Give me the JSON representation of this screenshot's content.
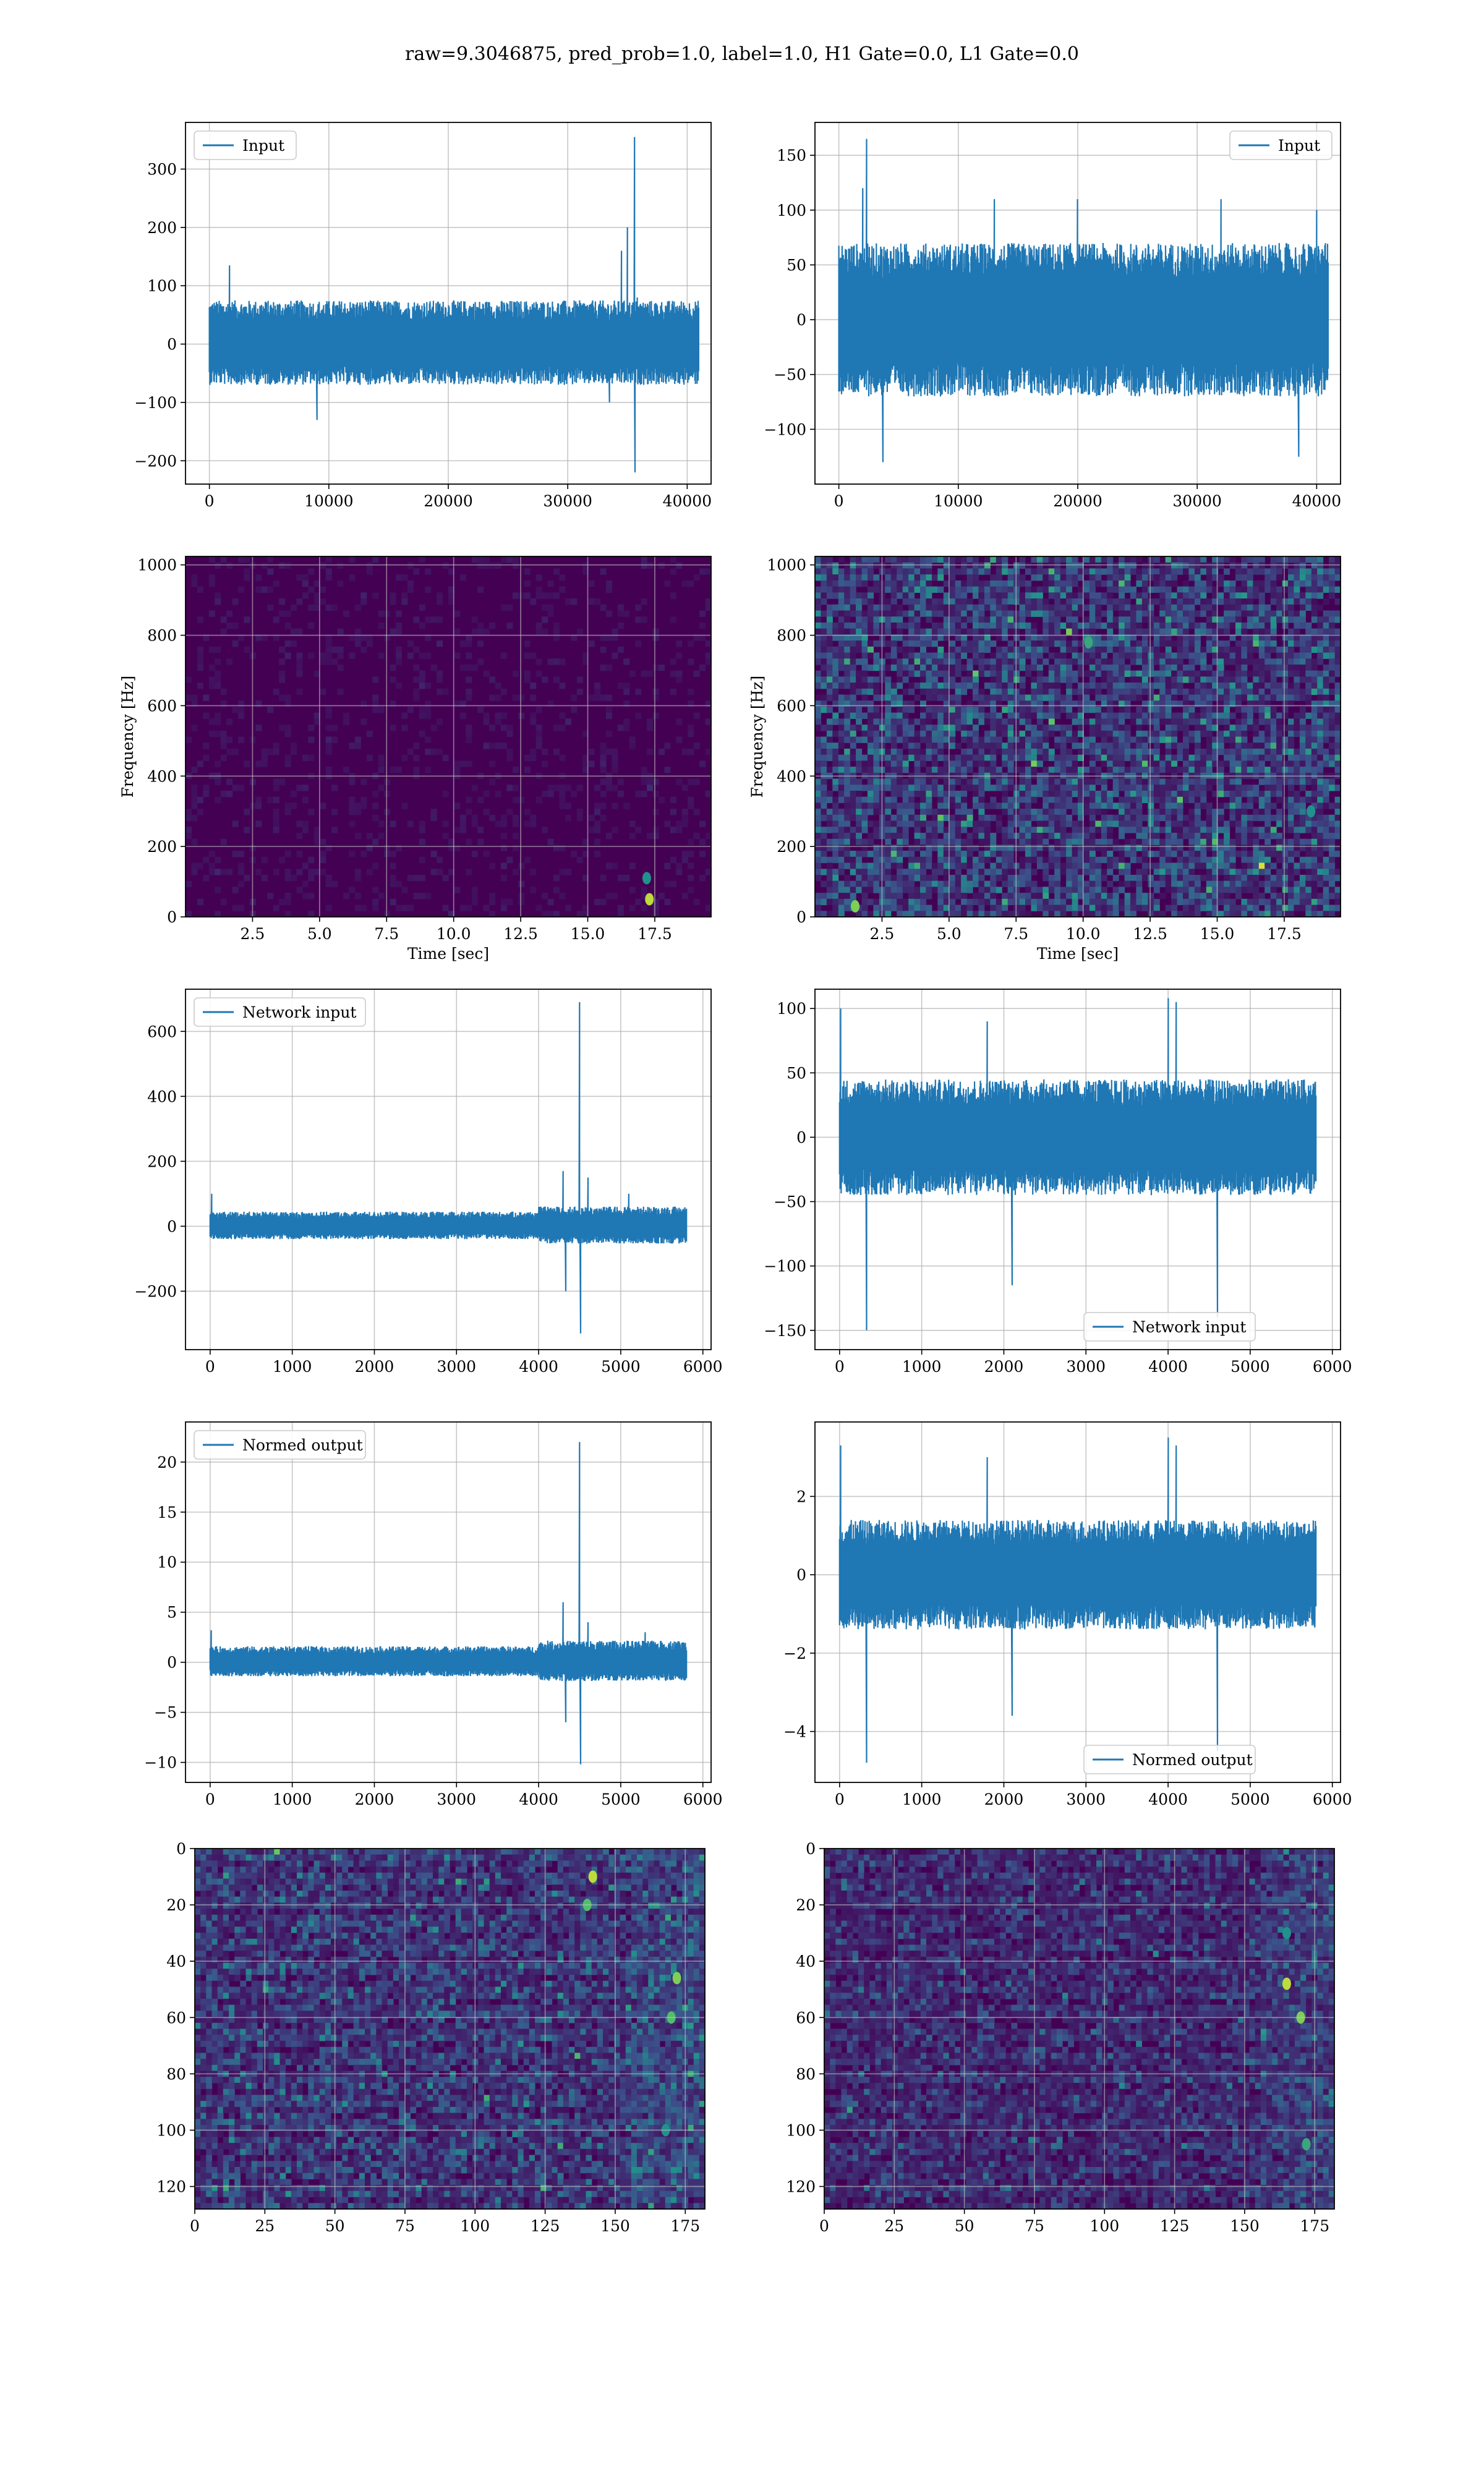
{
  "figure": {
    "title": "raw=9.3046875, pred_prob=1.0, label=1.0, H1 Gate=0.0, L1 Gate=0.0"
  },
  "colors": {
    "line": "#1f77b4",
    "grid": "#b0b0b0",
    "viridis_low": "#440154",
    "viridis_mid": "#21918c",
    "viridis_high": "#fde725"
  },
  "chart_data": [
    {
      "type": "line",
      "panel": "row1-left",
      "legend": "Input",
      "legend_loc": "upper left",
      "xlim": [
        -2000,
        42000
      ],
      "ylim": [
        -240,
        380
      ],
      "xticks": [
        0,
        10000,
        20000,
        30000,
        40000
      ],
      "yticks": [
        -200,
        -100,
        0,
        100,
        200,
        300
      ],
      "x_range": [
        0,
        40960
      ],
      "band": [
        -70,
        75
      ],
      "spikes": [
        [
          1700,
          135
        ],
        [
          9000,
          -130
        ],
        [
          33500,
          -100
        ],
        [
          34500,
          160
        ],
        [
          35000,
          200
        ],
        [
          35600,
          355
        ],
        [
          35650,
          -220
        ],
        [
          35800,
          80
        ]
      ],
      "grid": true
    },
    {
      "type": "line",
      "panel": "row1-right",
      "legend": "Input",
      "legend_loc": "upper right",
      "xlim": [
        -2000,
        42000
      ],
      "ylim": [
        -150,
        180
      ],
      "xticks": [
        0,
        10000,
        20000,
        30000,
        40000
      ],
      "yticks": [
        -100,
        -50,
        0,
        50,
        100,
        150
      ],
      "x_range": [
        0,
        40960
      ],
      "band": [
        -70,
        70
      ],
      "spikes": [
        [
          2300,
          165
        ],
        [
          2000,
          120
        ],
        [
          3700,
          -130
        ],
        [
          13000,
          110
        ],
        [
          20000,
          110
        ],
        [
          32000,
          110
        ],
        [
          38500,
          -125
        ],
        [
          40000,
          100
        ]
      ],
      "grid": true
    },
    {
      "type": "heatmap",
      "panel": "row2-left",
      "xlabel": "Time [sec]",
      "ylabel": "Frequency [Hz]",
      "xlim": [
        0,
        19.6
      ],
      "ylim": [
        0,
        1024
      ],
      "xticks": [
        2.5,
        5.0,
        7.5,
        10.0,
        12.5,
        15.0,
        17.5
      ],
      "yticks": [
        0,
        200,
        400,
        600,
        800,
        1000
      ],
      "intensity": "low",
      "hotspots": [
        [
          17.3,
          50,
          0.9
        ],
        [
          17.2,
          110,
          0.5
        ]
      ],
      "grid": true
    },
    {
      "type": "heatmap",
      "panel": "row2-right",
      "xlabel": "Time [sec]",
      "ylabel": "Frequency [Hz]",
      "xlim": [
        0,
        19.6
      ],
      "ylim": [
        0,
        1024
      ],
      "xticks": [
        2.5,
        5.0,
        7.5,
        10.0,
        12.5,
        15.0,
        17.5
      ],
      "yticks": [
        0,
        200,
        400,
        600,
        800,
        1000
      ],
      "intensity": "high",
      "hotspots": [
        [
          1.5,
          30,
          0.8
        ],
        [
          10.2,
          780,
          0.6
        ],
        [
          18.5,
          300,
          0.5
        ]
      ],
      "grid": true
    },
    {
      "type": "line",
      "panel": "row3-left",
      "legend": "Network input",
      "legend_loc": "upper left",
      "xlim": [
        -300,
        6100
      ],
      "ylim": [
        -380,
        730
      ],
      "xticks": [
        0,
        1000,
        2000,
        3000,
        4000,
        5000,
        6000
      ],
      "yticks": [
        -200,
        0,
        200,
        400,
        600
      ],
      "x_range": [
        0,
        5800
      ],
      "band": [
        -40,
        45
      ],
      "spikes": [
        [
          20,
          100
        ],
        [
          4300,
          170
        ],
        [
          4330,
          -200
        ],
        [
          4500,
          690
        ],
        [
          4510,
          -330
        ],
        [
          4600,
          150
        ],
        [
          5100,
          100
        ]
      ],
      "grid": true
    },
    {
      "type": "line",
      "panel": "row3-right",
      "legend": "Network input",
      "legend_loc": "lower center",
      "xlim": [
        -300,
        6100
      ],
      "ylim": [
        -165,
        115
      ],
      "xticks": [
        0,
        1000,
        2000,
        3000,
        4000,
        5000,
        6000
      ],
      "yticks": [
        -150,
        -100,
        -50,
        0,
        50,
        100
      ],
      "x_range": [
        0,
        5800
      ],
      "band": [
        -45,
        45
      ],
      "spikes": [
        [
          10,
          100
        ],
        [
          330,
          -150
        ],
        [
          2100,
          -115
        ],
        [
          4000,
          108
        ],
        [
          4100,
          105
        ],
        [
          4600,
          -140
        ],
        [
          1800,
          90
        ]
      ],
      "grid": true
    },
    {
      "type": "line",
      "panel": "row4-left",
      "legend": "Normed output",
      "legend_loc": "upper left",
      "xlim": [
        -300,
        6100
      ],
      "ylim": [
        -12,
        24
      ],
      "xticks": [
        0,
        1000,
        2000,
        3000,
        4000,
        5000,
        6000
      ],
      "yticks": [
        -10,
        -5,
        0,
        5,
        10,
        15,
        20
      ],
      "x_range": [
        0,
        5800
      ],
      "band": [
        -1.4,
        1.6
      ],
      "spikes": [
        [
          10,
          3.2
        ],
        [
          4300,
          6
        ],
        [
          4330,
          -6
        ],
        [
          4500,
          22
        ],
        [
          4510,
          -10.2
        ],
        [
          4600,
          4
        ],
        [
          5300,
          3
        ]
      ],
      "grid": true
    },
    {
      "type": "line",
      "panel": "row4-right",
      "legend": "Normed output",
      "legend_loc": "lower center",
      "xlim": [
        -300,
        6100
      ],
      "ylim": [
        -5.3,
        3.9
      ],
      "xticks": [
        0,
        1000,
        2000,
        3000,
        4000,
        5000,
        6000
      ],
      "yticks": [
        -4,
        -2,
        0,
        2
      ],
      "x_range": [
        0,
        5800
      ],
      "band": [
        -1.4,
        1.4
      ],
      "spikes": [
        [
          10,
          3.3
        ],
        [
          330,
          -4.8
        ],
        [
          2100,
          -3.6
        ],
        [
          4000,
          3.5
        ],
        [
          4100,
          3.3
        ],
        [
          4600,
          -4.5
        ],
        [
          1800,
          3
        ]
      ],
      "grid": true
    },
    {
      "type": "heatmap",
      "panel": "row5-left",
      "xlim": [
        0,
        182
      ],
      "ylim": [
        128,
        0
      ],
      "xticks": [
        0,
        25,
        50,
        75,
        100,
        125,
        150,
        175
      ],
      "yticks": [
        0,
        20,
        40,
        60,
        80,
        100,
        120
      ],
      "intensity": "medium",
      "hotspots": [
        [
          142,
          10,
          0.9
        ],
        [
          140,
          20,
          0.7
        ],
        [
          172,
          46,
          0.8
        ],
        [
          170,
          60,
          0.7
        ],
        [
          168,
          100,
          0.5
        ]
      ],
      "grid": true
    },
    {
      "type": "heatmap",
      "panel": "row5-right",
      "xlim": [
        0,
        182
      ],
      "ylim": [
        128,
        0
      ],
      "xticks": [
        0,
        25,
        50,
        75,
        100,
        125,
        150,
        175
      ],
      "yticks": [
        0,
        20,
        40,
        60,
        80,
        100,
        120
      ],
      "intensity": "medium-low",
      "hotspots": [
        [
          165,
          48,
          0.9
        ],
        [
          170,
          60,
          0.8
        ],
        [
          172,
          105,
          0.6
        ],
        [
          165,
          30,
          0.5
        ]
      ],
      "grid": true
    }
  ]
}
